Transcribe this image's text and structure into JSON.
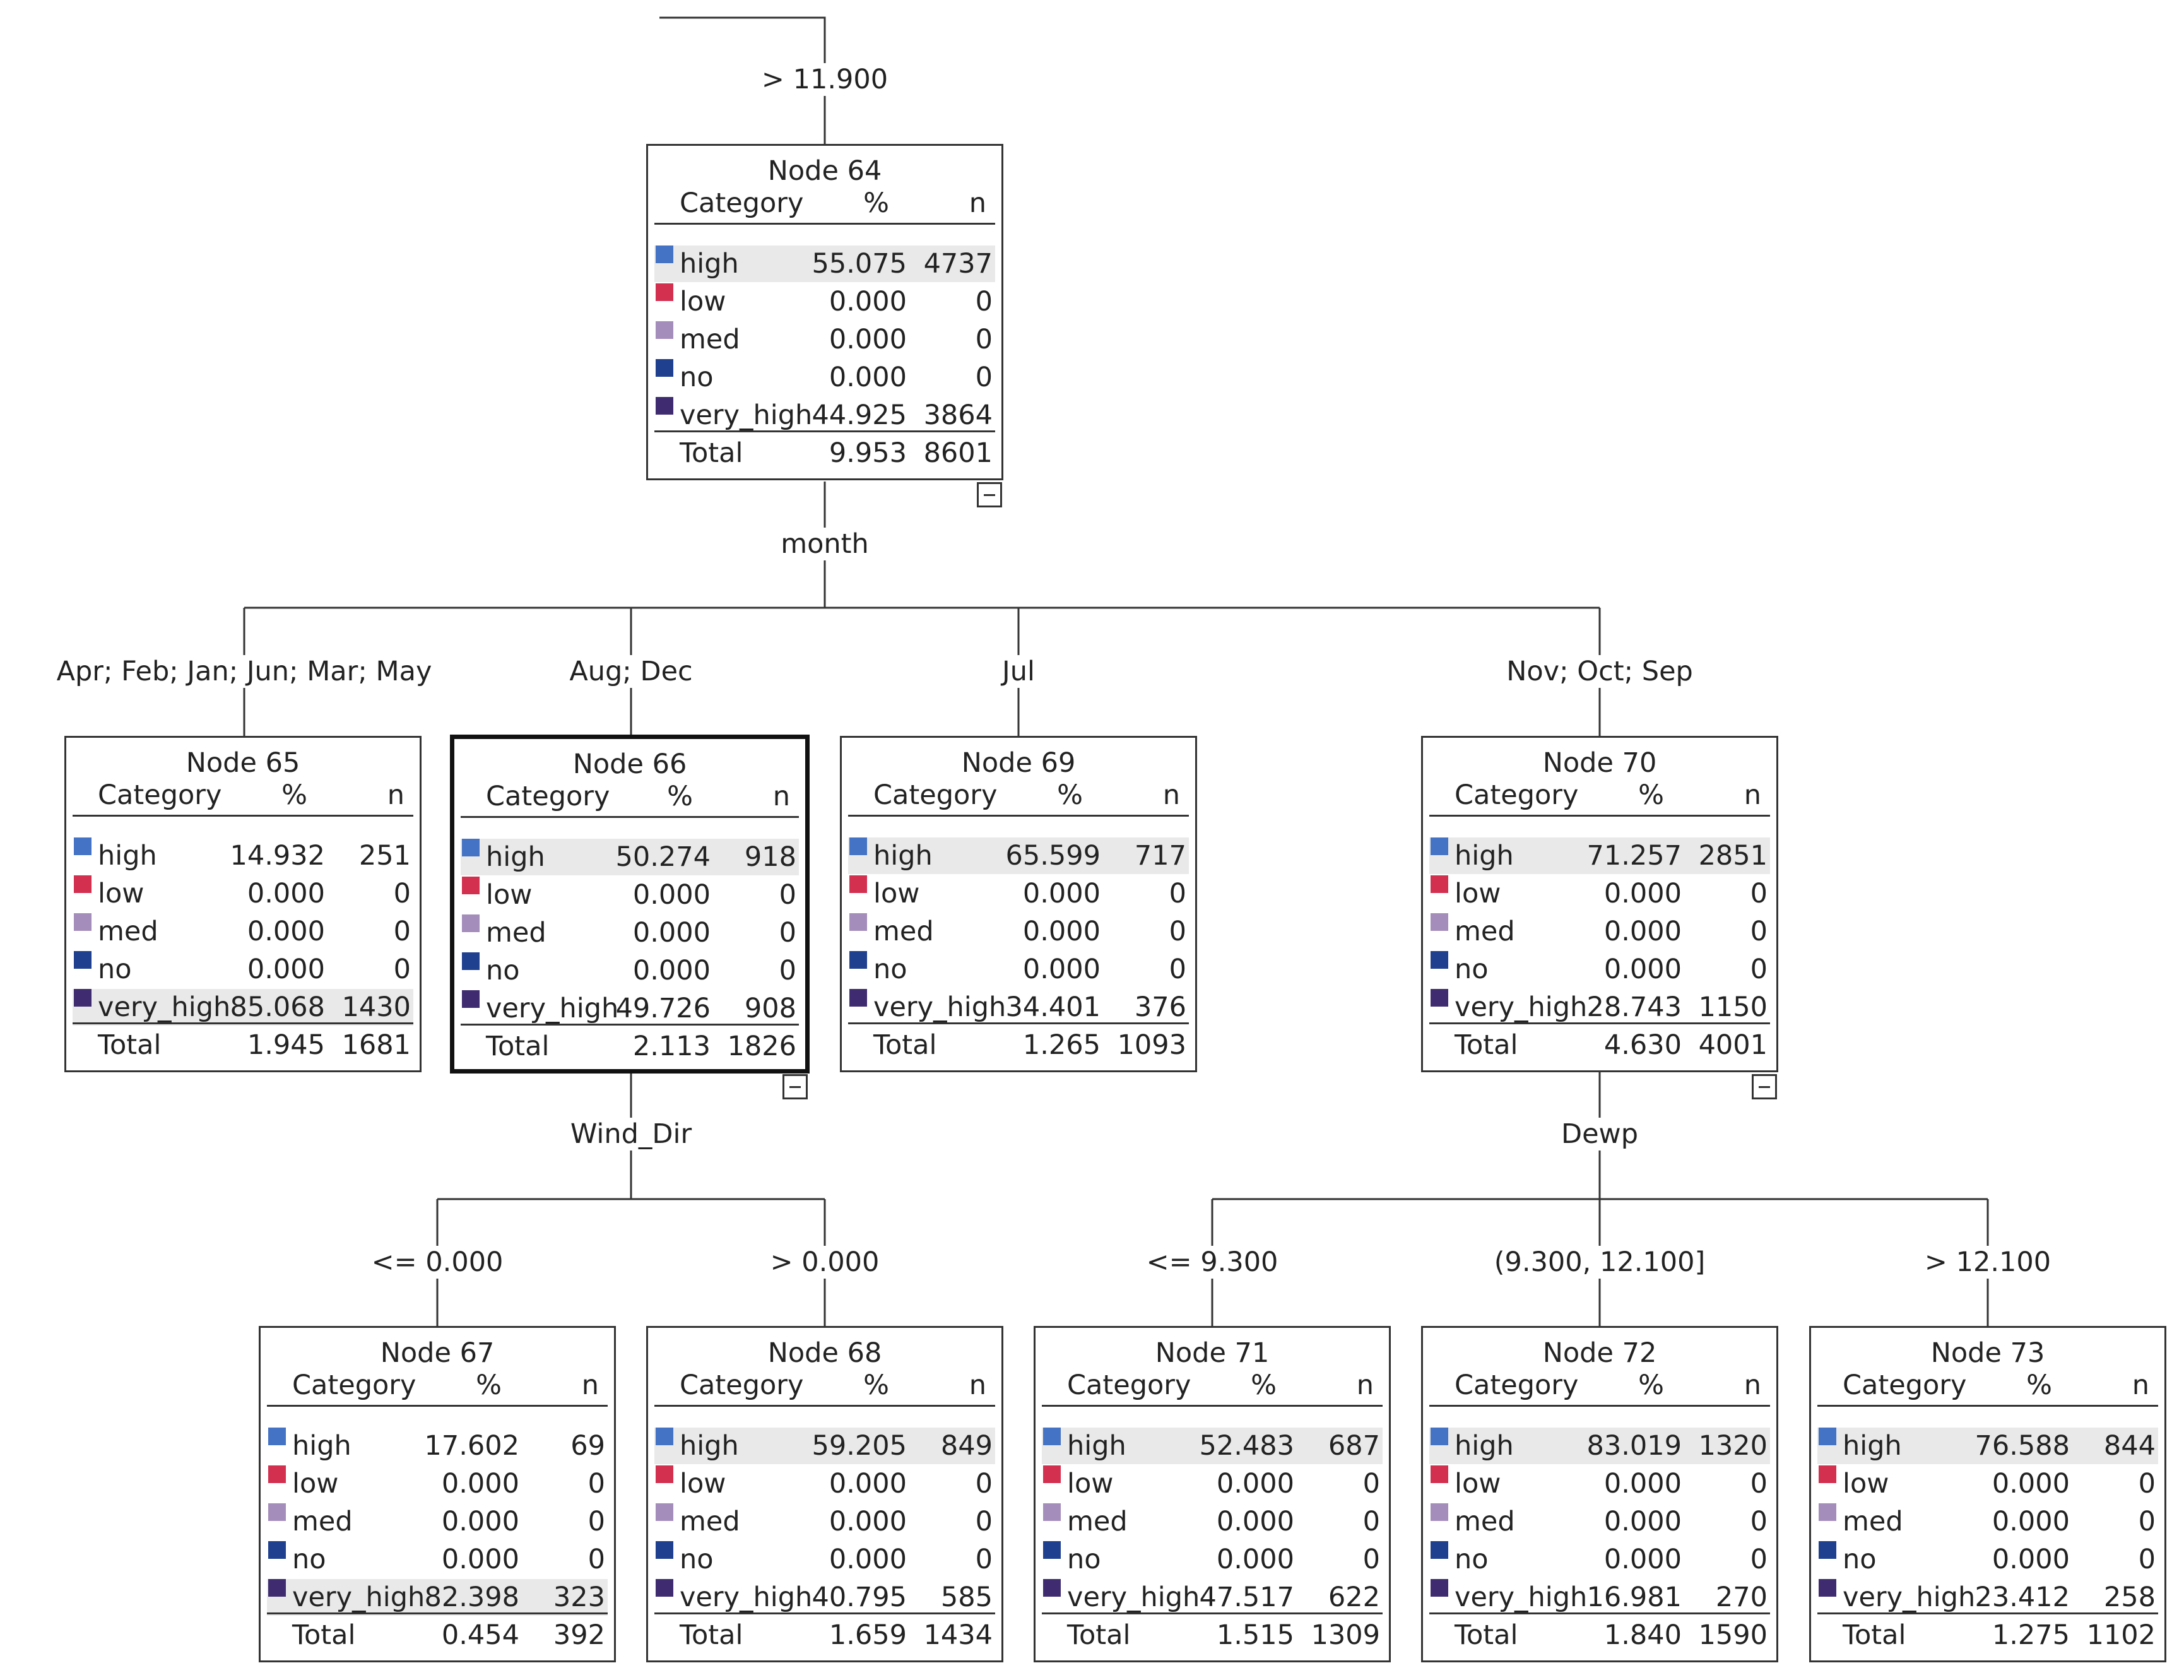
{
  "colors": {
    "high": "#4472c4",
    "low": "#d32f4f",
    "med": "#a48dbb",
    "no": "#1f3f8f",
    "very_high": "#3f2c70",
    "line": "#333333",
    "highlight": "#e9e9e9"
  },
  "headers": {
    "category": "Category",
    "percent": "%",
    "n": "n",
    "total": "Total"
  },
  "root_branch_label": "> 11.900",
  "split_labels": {
    "n64": "month",
    "n66": "Wind_Dir",
    "n70": "Dewp"
  },
  "edge_labels": {
    "e65": "Apr; Feb; Jan; Jun; Mar; May",
    "e66": "Aug; Dec",
    "e69": "Jul",
    "e70": "Nov; Oct; Sep",
    "e67": "<= 0.000",
    "e68": "> 0.000",
    "e71": "<= 9.300",
    "e72": "(9.300, 12.100]",
    "e73": "> 12.100"
  },
  "nodes": {
    "n64": {
      "title": "Node 64",
      "rows": [
        {
          "cat": "high",
          "pct": "55.075",
          "n": "4737"
        },
        {
          "cat": "low",
          "pct": "0.000",
          "n": "0"
        },
        {
          "cat": "med",
          "pct": "0.000",
          "n": "0"
        },
        {
          "cat": "no",
          "pct": "0.000",
          "n": "0"
        },
        {
          "cat": "very_high",
          "pct": "44.925",
          "n": "3864"
        }
      ],
      "total_pct": "9.953",
      "total_n": "8601"
    },
    "n65": {
      "title": "Node 65",
      "rows": [
        {
          "cat": "high",
          "pct": "14.932",
          "n": "251"
        },
        {
          "cat": "low",
          "pct": "0.000",
          "n": "0"
        },
        {
          "cat": "med",
          "pct": "0.000",
          "n": "0"
        },
        {
          "cat": "no",
          "pct": "0.000",
          "n": "0"
        },
        {
          "cat": "very_high",
          "pct": "85.068",
          "n": "1430"
        }
      ],
      "total_pct": "1.945",
      "total_n": "1681"
    },
    "n66": {
      "title": "Node 66",
      "rows": [
        {
          "cat": "high",
          "pct": "50.274",
          "n": "918"
        },
        {
          "cat": "low",
          "pct": "0.000",
          "n": "0"
        },
        {
          "cat": "med",
          "pct": "0.000",
          "n": "0"
        },
        {
          "cat": "no",
          "pct": "0.000",
          "n": "0"
        },
        {
          "cat": "very_high",
          "pct": "49.726",
          "n": "908"
        }
      ],
      "total_pct": "2.113",
      "total_n": "1826"
    },
    "n69": {
      "title": "Node 69",
      "rows": [
        {
          "cat": "high",
          "pct": "65.599",
          "n": "717"
        },
        {
          "cat": "low",
          "pct": "0.000",
          "n": "0"
        },
        {
          "cat": "med",
          "pct": "0.000",
          "n": "0"
        },
        {
          "cat": "no",
          "pct": "0.000",
          "n": "0"
        },
        {
          "cat": "very_high",
          "pct": "34.401",
          "n": "376"
        }
      ],
      "total_pct": "1.265",
      "total_n": "1093"
    },
    "n70": {
      "title": "Node 70",
      "rows": [
        {
          "cat": "high",
          "pct": "71.257",
          "n": "2851"
        },
        {
          "cat": "low",
          "pct": "0.000",
          "n": "0"
        },
        {
          "cat": "med",
          "pct": "0.000",
          "n": "0"
        },
        {
          "cat": "no",
          "pct": "0.000",
          "n": "0"
        },
        {
          "cat": "very_high",
          "pct": "28.743",
          "n": "1150"
        }
      ],
      "total_pct": "4.630",
      "total_n": "4001"
    },
    "n67": {
      "title": "Node 67",
      "rows": [
        {
          "cat": "high",
          "pct": "17.602",
          "n": "69"
        },
        {
          "cat": "low",
          "pct": "0.000",
          "n": "0"
        },
        {
          "cat": "med",
          "pct": "0.000",
          "n": "0"
        },
        {
          "cat": "no",
          "pct": "0.000",
          "n": "0"
        },
        {
          "cat": "very_high",
          "pct": "82.398",
          "n": "323"
        }
      ],
      "total_pct": "0.454",
      "total_n": "392"
    },
    "n68": {
      "title": "Node 68",
      "rows": [
        {
          "cat": "high",
          "pct": "59.205",
          "n": "849"
        },
        {
          "cat": "low",
          "pct": "0.000",
          "n": "0"
        },
        {
          "cat": "med",
          "pct": "0.000",
          "n": "0"
        },
        {
          "cat": "no",
          "pct": "0.000",
          "n": "0"
        },
        {
          "cat": "very_high",
          "pct": "40.795",
          "n": "585"
        }
      ],
      "total_pct": "1.659",
      "total_n": "1434"
    },
    "n71": {
      "title": "Node 71",
      "rows": [
        {
          "cat": "high",
          "pct": "52.483",
          "n": "687"
        },
        {
          "cat": "low",
          "pct": "0.000",
          "n": "0"
        },
        {
          "cat": "med",
          "pct": "0.000",
          "n": "0"
        },
        {
          "cat": "no",
          "pct": "0.000",
          "n": "0"
        },
        {
          "cat": "very_high",
          "pct": "47.517",
          "n": "622"
        }
      ],
      "total_pct": "1.515",
      "total_n": "1309"
    },
    "n72": {
      "title": "Node 72",
      "rows": [
        {
          "cat": "high",
          "pct": "83.019",
          "n": "1320"
        },
        {
          "cat": "low",
          "pct": "0.000",
          "n": "0"
        },
        {
          "cat": "med",
          "pct": "0.000",
          "n": "0"
        },
        {
          "cat": "no",
          "pct": "0.000",
          "n": "0"
        },
        {
          "cat": "very_high",
          "pct": "16.981",
          "n": "270"
        }
      ],
      "total_pct": "1.840",
      "total_n": "1590"
    },
    "n73": {
      "title": "Node 73",
      "rows": [
        {
          "cat": "high",
          "pct": "76.588",
          "n": "844"
        },
        {
          "cat": "low",
          "pct": "0.000",
          "n": "0"
        },
        {
          "cat": "med",
          "pct": "0.000",
          "n": "0"
        },
        {
          "cat": "no",
          "pct": "0.000",
          "n": "0"
        },
        {
          "cat": "very_high",
          "pct": "23.412",
          "n": "258"
        }
      ],
      "total_pct": "1.275",
      "total_n": "1102"
    }
  }
}
